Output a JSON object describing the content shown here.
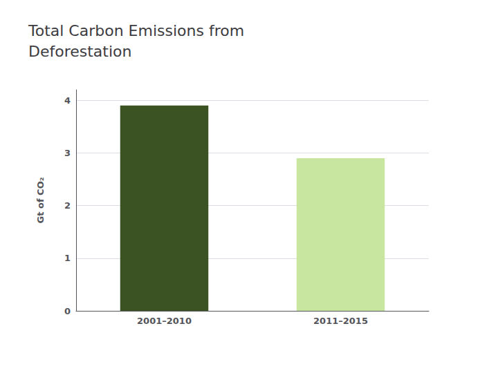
{
  "chart_data": {
    "type": "bar",
    "title": "Total Carbon Emissions from\nDeforestation",
    "categories": [
      "2001–2010",
      "2011–2015"
    ],
    "values": [
      3.9,
      2.9
    ],
    "colors": [
      "#3b5323",
      "#c8e6a0"
    ],
    "ylabel": "Gt of CO₂",
    "ylim": [
      0,
      4.2
    ],
    "yticks": [
      0,
      1,
      2,
      3,
      4
    ],
    "grid": true
  }
}
